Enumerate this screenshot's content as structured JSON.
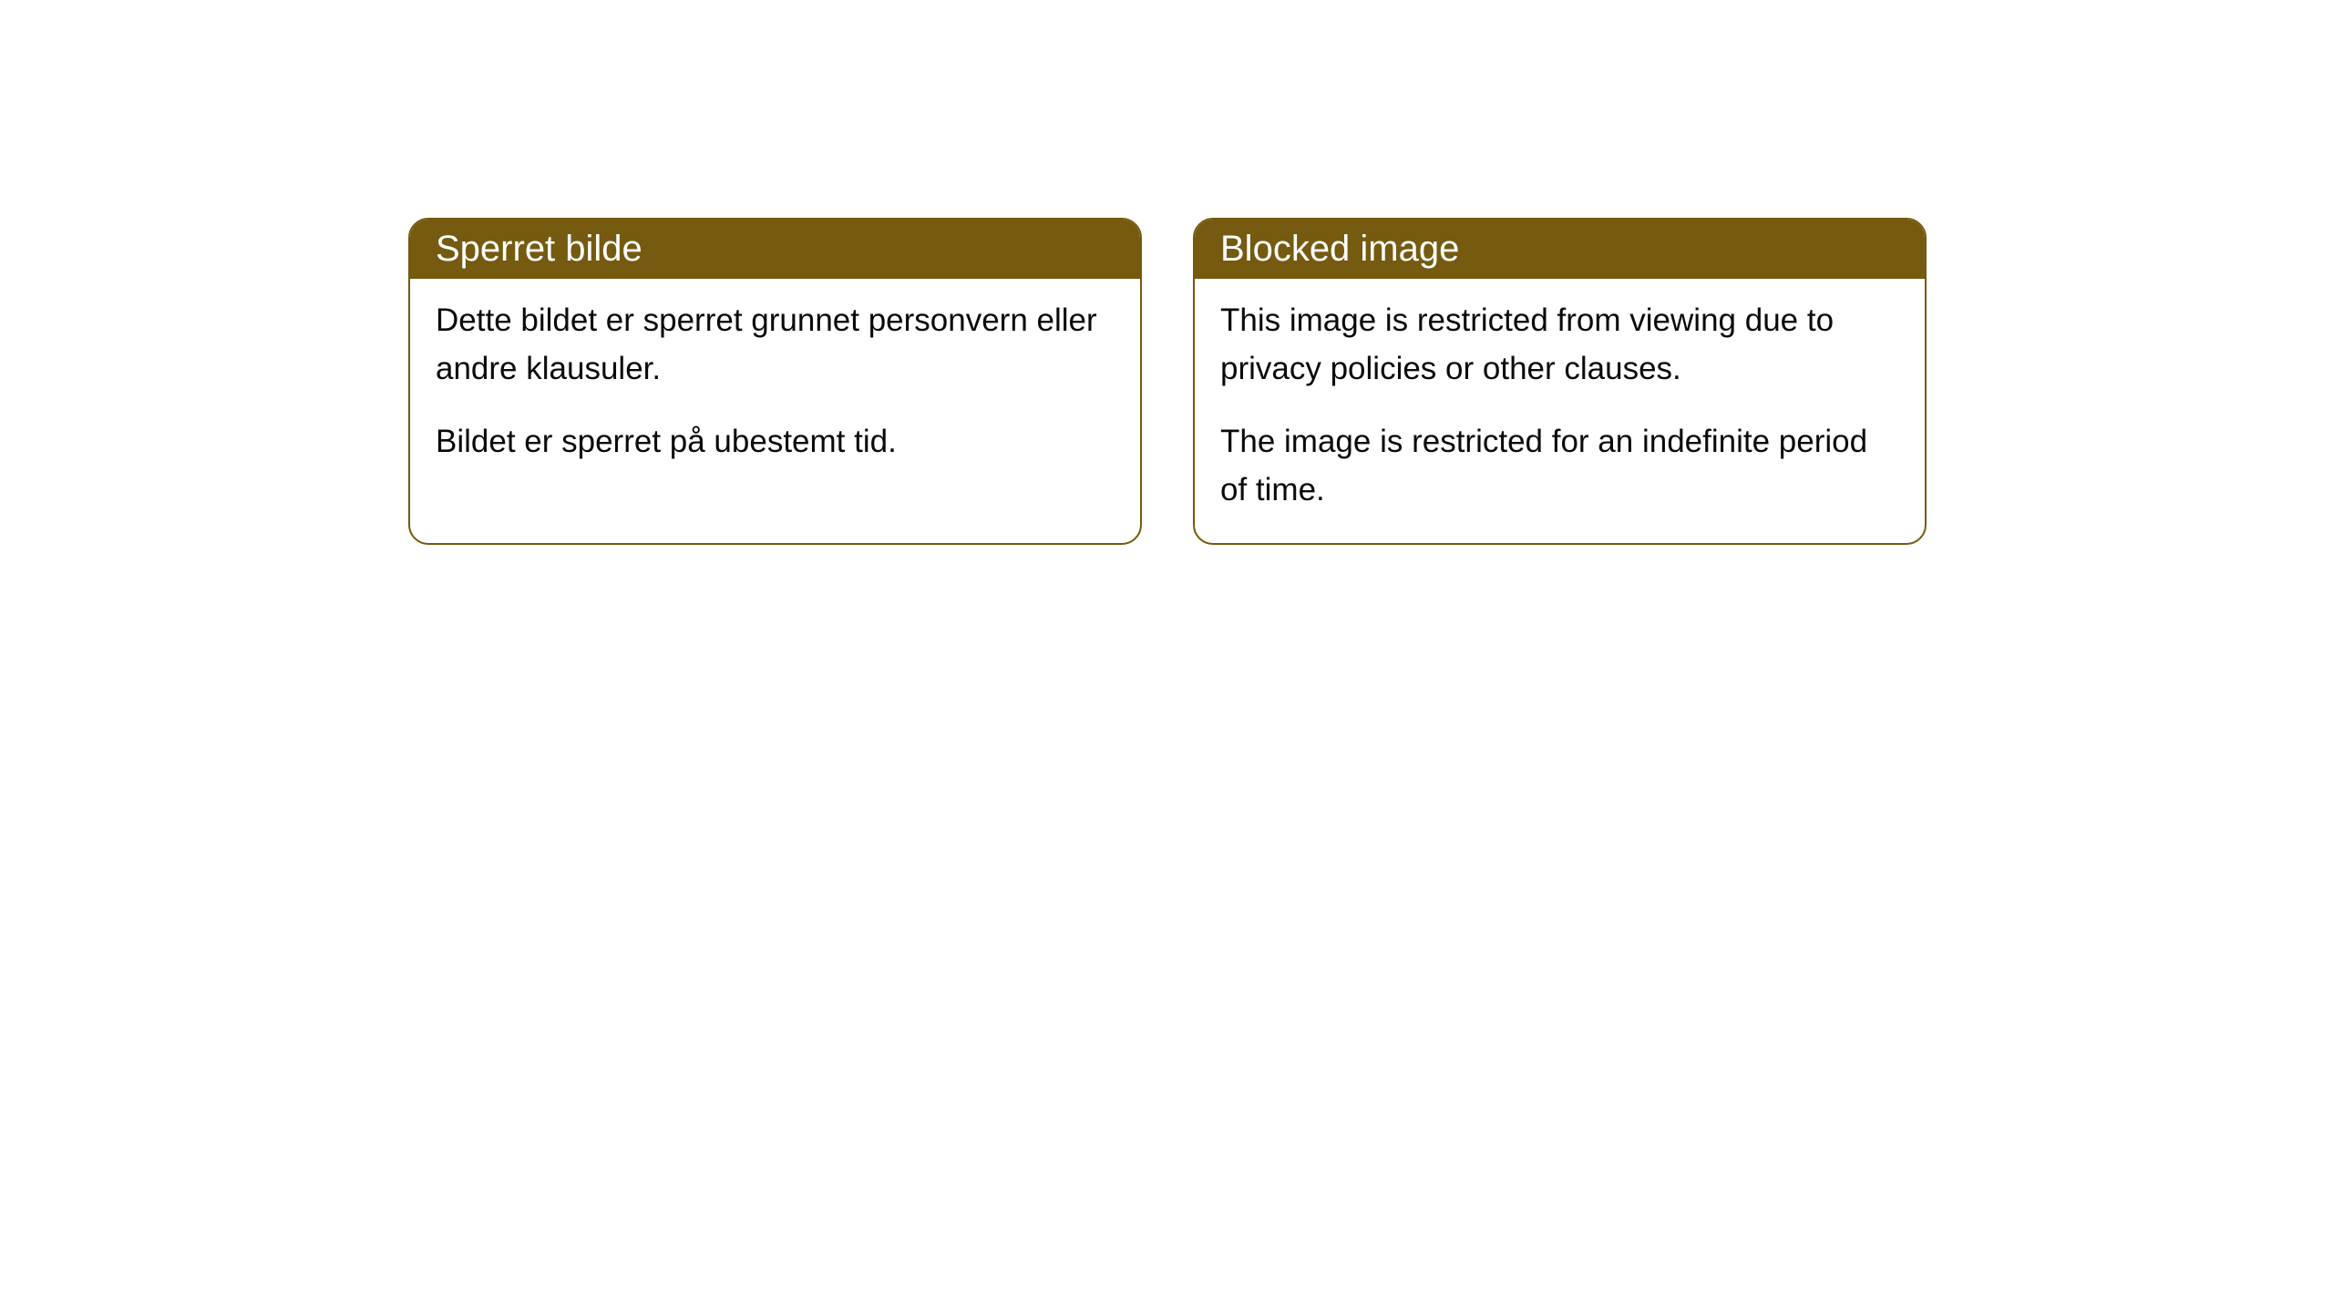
{
  "cards": [
    {
      "title": "Sperret bilde",
      "paragraph1": "Dette bildet er sperret grunnet personvern eller andre klausuler.",
      "paragraph2": "Bildet er sperret på ubestemt tid."
    },
    {
      "title": "Blocked image",
      "paragraph1": "This image is restricted from viewing due to privacy policies or other clauses.",
      "paragraph2": "The image is restricted for an indefinite period of time."
    }
  ],
  "styling": {
    "header_background": "#755a0f",
    "header_text_color": "#ffffff",
    "body_text_color": "#0a0a0a",
    "border_color": "#755a0f",
    "background_color": "#ffffff",
    "border_radius": 22,
    "title_fontsize": 40,
    "body_fontsize": 35
  }
}
